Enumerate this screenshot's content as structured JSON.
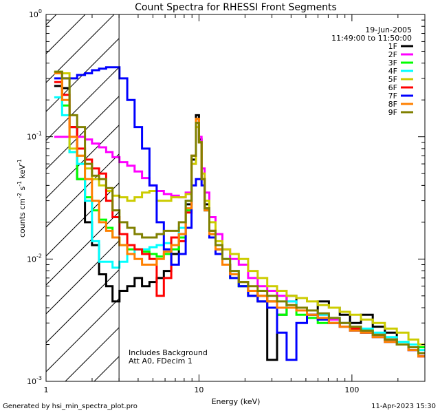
{
  "chart_data": {
    "type": "line",
    "title": "Count Spectra for RHESSI Front Segments",
    "xlabel": "Energy (keV)",
    "ylabel": "counts cm",
    "ylabel_sup1": "-2",
    "ylabel_mid": " s",
    "ylabel_sup2": "-1",
    "ylabel_end": " keV",
    "ylabel_sup3": "-1",
    "xscale": "log",
    "yscale": "log",
    "xlim": [
      1,
      300
    ],
    "ylim": [
      0.001,
      1
    ],
    "x_ticks": [
      {
        "v": 1,
        "label": "1"
      },
      {
        "v": 10,
        "label": "10"
      },
      {
        "v": 100,
        "label": "100"
      }
    ],
    "y_ticks": [
      {
        "v": 1,
        "base": "10",
        "exp": "0"
      },
      {
        "v": 0.1,
        "base": "10",
        "exp": "-1"
      },
      {
        "v": 0.01,
        "base": "10",
        "exp": "-2"
      },
      {
        "v": 0.001,
        "base": "10",
        "exp": "-3"
      }
    ],
    "date": "19-Jun-2005",
    "time_range": "11:49:00 to 11:50:00",
    "note_line1": "Includes Background",
    "note_line2": "Att A0, FDecim 1",
    "attenuator_edge_kev": 3,
    "x": [
      1.2,
      1.35,
      1.5,
      1.7,
      1.9,
      2.1,
      2.35,
      2.6,
      2.85,
      3.2,
      3.6,
      4.0,
      4.5,
      5.0,
      5.6,
      6.2,
      7.0,
      7.8,
      8.6,
      9.3,
      9.8,
      10.2,
      10.6,
      11.2,
      12.2,
      13.5,
      15.0,
      17.0,
      19.5,
      22.5,
      26.0,
      30.0,
      35.0,
      40.0,
      47.0,
      55.0,
      65.0,
      77.0,
      90.0,
      105.0,
      125.0,
      150.0,
      180.0,
      215.0,
      255.0,
      290.0
    ],
    "series": [
      {
        "name": "1F",
        "color": "#000000",
        "values": [
          0.26,
          0.25,
          0.12,
          0.045,
          0.02,
          0.013,
          0.0075,
          0.006,
          0.0045,
          0.0055,
          0.006,
          0.007,
          0.006,
          0.0065,
          0.007,
          0.008,
          0.011,
          0.016,
          0.028,
          0.065,
          0.15,
          0.095,
          0.045,
          0.028,
          0.016,
          0.012,
          0.009,
          0.0075,
          0.006,
          0.005,
          0.0045,
          0.0015,
          0.0035,
          0.005,
          0.004,
          0.0035,
          0.0045,
          0.004,
          0.0035,
          0.003,
          0.0035,
          0.0028,
          0.0025,
          0.002,
          0.0018,
          0.0016
        ]
      },
      {
        "name": "2F",
        "color": "#ff00ff",
        "values": [
          0.1,
          0.1,
          0.1,
          0.1,
          0.095,
          0.088,
          0.082,
          0.075,
          0.068,
          0.062,
          0.058,
          0.052,
          0.046,
          0.04,
          0.036,
          0.034,
          0.033,
          0.032,
          0.035,
          0.06,
          0.13,
          0.1,
          0.055,
          0.035,
          0.022,
          0.016,
          0.012,
          0.01,
          0.009,
          0.007,
          0.006,
          0.0055,
          0.005,
          0.0045,
          0.004,
          0.0038,
          0.0035,
          0.0032,
          0.003,
          0.0028,
          0.0026,
          0.0024,
          0.0022,
          0.002,
          0.0018,
          0.0016
        ]
      },
      {
        "name": "3F",
        "color": "#00ff00",
        "values": [
          0.34,
          0.18,
          0.075,
          0.045,
          0.032,
          0.025,
          0.021,
          0.018,
          0.015,
          0.013,
          0.012,
          0.012,
          0.0115,
          0.011,
          0.0105,
          0.011,
          0.012,
          0.015,
          0.025,
          0.07,
          0.14,
          0.09,
          0.045,
          0.025,
          0.016,
          0.012,
          0.009,
          0.007,
          0.006,
          0.0055,
          0.005,
          0.0045,
          0.0035,
          0.004,
          0.0035,
          0.0033,
          0.003,
          0.003,
          0.0028,
          0.0027,
          0.0026,
          0.0024,
          0.0022,
          0.0021,
          0.002,
          0.0019
        ]
      },
      {
        "name": "4F",
        "color": "#00ffff",
        "values": [
          0.21,
          0.15,
          0.075,
          0.06,
          0.03,
          0.014,
          0.0095,
          0.0095,
          0.0085,
          0.0095,
          0.011,
          0.012,
          0.012,
          0.0125,
          0.013,
          0.0135,
          0.015,
          0.018,
          0.03,
          0.07,
          0.14,
          0.09,
          0.045,
          0.026,
          0.017,
          0.013,
          0.01,
          0.008,
          0.0065,
          0.0055,
          0.005,
          0.0045,
          0.004,
          0.0045,
          0.004,
          0.0038,
          0.0035,
          0.0033,
          0.003,
          0.0028,
          0.0027,
          0.0025,
          0.0023,
          0.0021,
          0.002,
          0.0018
        ]
      },
      {
        "name": "5F",
        "color": "#cccc00",
        "values": [
          0.34,
          0.33,
          0.08,
          0.07,
          0.055,
          0.045,
          0.04,
          0.036,
          0.033,
          0.032,
          0.03,
          0.032,
          0.035,
          0.036,
          0.03,
          0.03,
          0.032,
          0.032,
          0.034,
          0.06,
          0.12,
          0.09,
          0.05,
          0.03,
          0.02,
          0.014,
          0.012,
          0.011,
          0.01,
          0.008,
          0.007,
          0.006,
          0.0055,
          0.005,
          0.0048,
          0.0045,
          0.0042,
          0.004,
          0.0037,
          0.0035,
          0.0032,
          0.003,
          0.0027,
          0.0025,
          0.0022,
          0.002
        ]
      },
      {
        "name": "6F",
        "color": "#ff0000",
        "values": [
          0.28,
          0.22,
          0.12,
          0.08,
          0.065,
          0.055,
          0.05,
          0.03,
          0.022,
          0.016,
          0.013,
          0.012,
          0.011,
          0.01,
          0.005,
          0.007,
          0.015,
          0.014,
          0.024,
          0.07,
          0.14,
          0.09,
          0.045,
          0.026,
          0.017,
          0.012,
          0.009,
          0.0075,
          0.0065,
          0.0055,
          0.005,
          0.0045,
          0.004,
          0.004,
          0.0038,
          0.0035,
          0.0033,
          0.003,
          0.0028,
          0.0027,
          0.0025,
          0.0024,
          0.0022,
          0.002,
          0.0019,
          0.0017
        ]
      },
      {
        "name": "7F",
        "color": "#0000ff",
        "values": [
          0.3,
          0.3,
          0.3,
          0.32,
          0.33,
          0.35,
          0.36,
          0.37,
          0.37,
          0.3,
          0.2,
          0.12,
          0.08,
          0.04,
          0.02,
          0.012,
          0.009,
          0.011,
          0.018,
          0.04,
          0.045,
          0.045,
          0.04,
          0.025,
          0.015,
          0.011,
          0.009,
          0.007,
          0.006,
          0.005,
          0.0045,
          0.004,
          0.0025,
          0.0015,
          0.003,
          0.0035,
          0.0032,
          0.003,
          0.0028,
          0.0026,
          0.0025,
          0.0023,
          0.0021,
          0.002,
          0.0018,
          0.0017
        ]
      },
      {
        "name": "8F",
        "color": "#ff8000",
        "values": [
          0.33,
          0.2,
          0.1,
          0.07,
          0.045,
          0.03,
          0.02,
          0.017,
          0.015,
          0.013,
          0.011,
          0.01,
          0.009,
          0.009,
          0.01,
          0.0115,
          0.013,
          0.016,
          0.026,
          0.07,
          0.14,
          0.09,
          0.045,
          0.025,
          0.016,
          0.012,
          0.009,
          0.0075,
          0.0065,
          0.0055,
          0.005,
          0.0045,
          0.004,
          0.004,
          0.0038,
          0.0035,
          0.0033,
          0.003,
          0.0028,
          0.0026,
          0.0025,
          0.0023,
          0.0021,
          0.002,
          0.0018,
          0.0016
        ]
      },
      {
        "name": "9F",
        "color": "#808000",
        "values": [
          0.34,
          0.3,
          0.15,
          0.12,
          0.06,
          0.048,
          0.045,
          0.038,
          0.025,
          0.02,
          0.018,
          0.016,
          0.015,
          0.015,
          0.016,
          0.017,
          0.017,
          0.02,
          0.03,
          0.07,
          0.13,
          0.09,
          0.045,
          0.026,
          0.017,
          0.013,
          0.01,
          0.008,
          0.0065,
          0.006,
          0.0055,
          0.005,
          0.0045,
          0.0042,
          0.004,
          0.0038,
          0.0036,
          0.0033,
          0.003,
          0.0028,
          0.0026,
          0.0024,
          0.0022,
          0.002,
          0.0019,
          0.0017
        ]
      }
    ]
  },
  "footer": {
    "generated": "Generated by hsi_min_spectra_plot.pro",
    "timestamp": "11-Apr-2023 15:30"
  }
}
